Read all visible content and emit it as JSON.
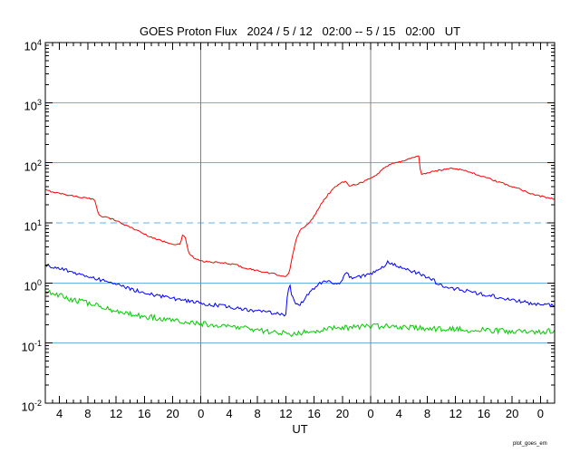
{
  "chart_data": {
    "type": "line",
    "title": "GOES Proton Flux   2024 / 5 / 12   02:00 -- 5 / 15   02:00   UT",
    "xlabel": "UT",
    "x_range_hours": [
      0,
      72
    ],
    "x_tick_hours": [
      2,
      6,
      10,
      14,
      18,
      22,
      26,
      30,
      34,
      38,
      42,
      46,
      50,
      54,
      58,
      62,
      66,
      70
    ],
    "x_tick_labels": [
      "4",
      "8",
      "12",
      "16",
      "20",
      "0",
      "4",
      "8",
      "12",
      "16",
      "20",
      "0",
      "4",
      "8",
      "12",
      "16",
      "20",
      "0"
    ],
    "ylim": [
      0.01,
      10000
    ],
    "y_tick_exponents": [
      4,
      3,
      2,
      1,
      0,
      -1,
      -2
    ],
    "axis_color": "#000000",
    "grid": {
      "solid_hlines": [
        1000,
        100,
        1,
        0.1
      ],
      "dashed_hlines": [
        10
      ],
      "vline_hours": [
        22,
        46
      ],
      "hline_color": "#69b2e2",
      "vline_color": "#808080"
    },
    "series": [
      {
        "name": "red",
        "color": "#ff0000",
        "points": [
          [
            0,
            35
          ],
          [
            2,
            31
          ],
          [
            4,
            28
          ],
          [
            6,
            25.5
          ],
          [
            7,
            24
          ],
          [
            7.5,
            14
          ],
          [
            8,
            13
          ],
          [
            9,
            12
          ],
          [
            10,
            11
          ],
          [
            11,
            9.5
          ],
          [
            12,
            8.5
          ],
          [
            13,
            7.5
          ],
          [
            14,
            6.5
          ],
          [
            15,
            5.8
          ],
          [
            16,
            5.2
          ],
          [
            17,
            4.8
          ],
          [
            18,
            4.5
          ],
          [
            19,
            4.3
          ],
          [
            19.4,
            6.2
          ],
          [
            19.8,
            5.6
          ],
          [
            20.3,
            3.1
          ],
          [
            21,
            2.6
          ],
          [
            22,
            2.3
          ],
          [
            24,
            2.2
          ],
          [
            26,
            2.1
          ],
          [
            27,
            2.0
          ],
          [
            28,
            1.8
          ],
          [
            29,
            1.7
          ],
          [
            30,
            1.6
          ],
          [
            31,
            1.5
          ],
          [
            32,
            1.44
          ],
          [
            33,
            1.35
          ],
          [
            34,
            1.3
          ],
          [
            34.5,
            1.5
          ],
          [
            35,
            3.0
          ],
          [
            35.5,
            5.5
          ],
          [
            36,
            7.5
          ],
          [
            37,
            9.5
          ],
          [
            37.5,
            10.5
          ],
          [
            38,
            13
          ],
          [
            39,
            21
          ],
          [
            40,
            30
          ],
          [
            41,
            40
          ],
          [
            42,
            47
          ],
          [
            42.5,
            49
          ],
          [
            43,
            42
          ],
          [
            44,
            44
          ],
          [
            45,
            49
          ],
          [
            46,
            55
          ],
          [
            47,
            65
          ],
          [
            48,
            85
          ],
          [
            49,
            97
          ],
          [
            50,
            103
          ],
          [
            51,
            112
          ],
          [
            52,
            122
          ],
          [
            52.5,
            130
          ],
          [
            52.8,
            127
          ],
          [
            53.1,
            63
          ],
          [
            54,
            68
          ],
          [
            55,
            72
          ],
          [
            56,
            76
          ],
          [
            57,
            80
          ],
          [
            57.5,
            82
          ],
          [
            58,
            80
          ],
          [
            59,
            76
          ],
          [
            60,
            70
          ],
          [
            61,
            64
          ],
          [
            62,
            58
          ],
          [
            63,
            53
          ],
          [
            64,
            48
          ],
          [
            65,
            44
          ],
          [
            66,
            40
          ],
          [
            67,
            37
          ],
          [
            68,
            33
          ],
          [
            69,
            30
          ],
          [
            70,
            28
          ],
          [
            71,
            26
          ],
          [
            72,
            25
          ]
        ]
      },
      {
        "name": "blue",
        "color": "#0000ff",
        "points": [
          [
            0,
            2.0
          ],
          [
            1,
            1.85
          ],
          [
            2,
            1.72
          ],
          [
            3,
            1.6
          ],
          [
            4,
            1.5
          ],
          [
            5,
            1.4
          ],
          [
            6,
            1.3
          ],
          [
            7,
            1.2
          ],
          [
            8,
            1.1
          ],
          [
            9,
            1.02
          ],
          [
            10,
            0.95
          ],
          [
            11,
            0.87
          ],
          [
            12,
            0.8
          ],
          [
            13,
            0.74
          ],
          [
            14,
            0.69
          ],
          [
            15,
            0.65
          ],
          [
            16,
            0.61
          ],
          [
            17,
            0.58
          ],
          [
            18,
            0.55
          ],
          [
            19,
            0.52
          ],
          [
            20,
            0.5
          ],
          [
            21,
            0.48
          ],
          [
            22,
            0.46
          ],
          [
            23,
            0.44
          ],
          [
            24,
            0.43
          ],
          [
            25,
            0.41
          ],
          [
            26,
            0.4
          ],
          [
            27,
            0.38
          ],
          [
            28,
            0.37
          ],
          [
            29,
            0.35
          ],
          [
            30,
            0.34
          ],
          [
            31,
            0.33
          ],
          [
            32,
            0.32
          ],
          [
            33,
            0.31
          ],
          [
            34,
            0.3
          ],
          [
            34.3,
            0.78
          ],
          [
            34.6,
            0.88
          ],
          [
            34.9,
            0.6
          ],
          [
            35.3,
            0.44
          ],
          [
            35.8,
            0.42
          ],
          [
            36.5,
            0.52
          ],
          [
            37,
            0.62
          ],
          [
            37.5,
            0.72
          ],
          [
            38,
            0.82
          ],
          [
            38.5,
            0.92
          ],
          [
            39,
            1.0
          ],
          [
            40,
            1.05
          ],
          [
            41,
            1.0
          ],
          [
            42,
            1.05
          ],
          [
            42.4,
            1.45
          ],
          [
            42.8,
            1.35
          ],
          [
            43.2,
            1.25
          ],
          [
            44,
            1.25
          ],
          [
            45,
            1.3
          ],
          [
            46,
            1.45
          ],
          [
            47,
            1.65
          ],
          [
            48,
            2.0
          ],
          [
            48.5,
            2.25
          ],
          [
            49,
            2.15
          ],
          [
            50,
            1.9
          ],
          [
            51,
            1.7
          ],
          [
            52,
            1.55
          ],
          [
            53,
            1.4
          ],
          [
            54,
            1.25
          ],
          [
            55,
            1.1
          ],
          [
            55.4,
            0.95
          ],
          [
            56,
            0.9
          ],
          [
            57,
            0.85
          ],
          [
            58,
            0.8
          ],
          [
            59,
            0.76
          ],
          [
            60,
            0.72
          ],
          [
            61,
            0.68
          ],
          [
            62,
            0.65
          ],
          [
            63,
            0.61
          ],
          [
            64,
            0.58
          ],
          [
            65,
            0.55
          ],
          [
            66,
            0.52
          ],
          [
            67,
            0.5
          ],
          [
            68,
            0.47
          ],
          [
            69,
            0.45
          ],
          [
            70,
            0.44
          ],
          [
            71,
            0.43
          ],
          [
            72,
            0.42
          ]
        ]
      },
      {
        "name": "green",
        "color": "#00cc00",
        "points": [
          [
            0,
            0.75
          ],
          [
            1,
            0.68
          ],
          [
            2,
            0.62
          ],
          [
            3,
            0.57
          ],
          [
            4,
            0.52
          ],
          [
            5,
            0.49
          ],
          [
            6,
            0.46
          ],
          [
            7,
            0.43
          ],
          [
            8,
            0.4
          ],
          [
            9,
            0.37
          ],
          [
            10,
            0.35
          ],
          [
            11,
            0.33
          ],
          [
            12,
            0.31
          ],
          [
            13,
            0.29
          ],
          [
            14,
            0.28
          ],
          [
            15,
            0.27
          ],
          [
            16,
            0.26
          ],
          [
            17,
            0.25
          ],
          [
            18,
            0.24
          ],
          [
            19,
            0.23
          ],
          [
            20,
            0.22
          ],
          [
            22,
            0.21
          ],
          [
            24,
            0.2
          ],
          [
            26,
            0.19
          ],
          [
            28,
            0.18
          ],
          [
            30,
            0.165
          ],
          [
            32,
            0.155
          ],
          [
            33,
            0.15
          ],
          [
            34,
            0.145
          ],
          [
            35,
            0.14
          ],
          [
            36,
            0.15
          ],
          [
            37,
            0.155
          ],
          [
            38,
            0.16
          ],
          [
            39,
            0.165
          ],
          [
            40,
            0.17
          ],
          [
            41,
            0.175
          ],
          [
            42,
            0.18
          ],
          [
            44,
            0.185
          ],
          [
            46,
            0.19
          ],
          [
            48,
            0.19
          ],
          [
            50,
            0.185
          ],
          [
            52,
            0.18
          ],
          [
            54,
            0.175
          ],
          [
            56,
            0.17
          ],
          [
            58,
            0.17
          ],
          [
            60,
            0.165
          ],
          [
            62,
            0.165
          ],
          [
            64,
            0.16
          ],
          [
            66,
            0.155
          ],
          [
            68,
            0.155
          ],
          [
            70,
            0.155
          ],
          [
            72,
            0.16
          ]
        ]
      }
    ]
  },
  "footer": {
    "credit": "plot_goes_em"
  }
}
